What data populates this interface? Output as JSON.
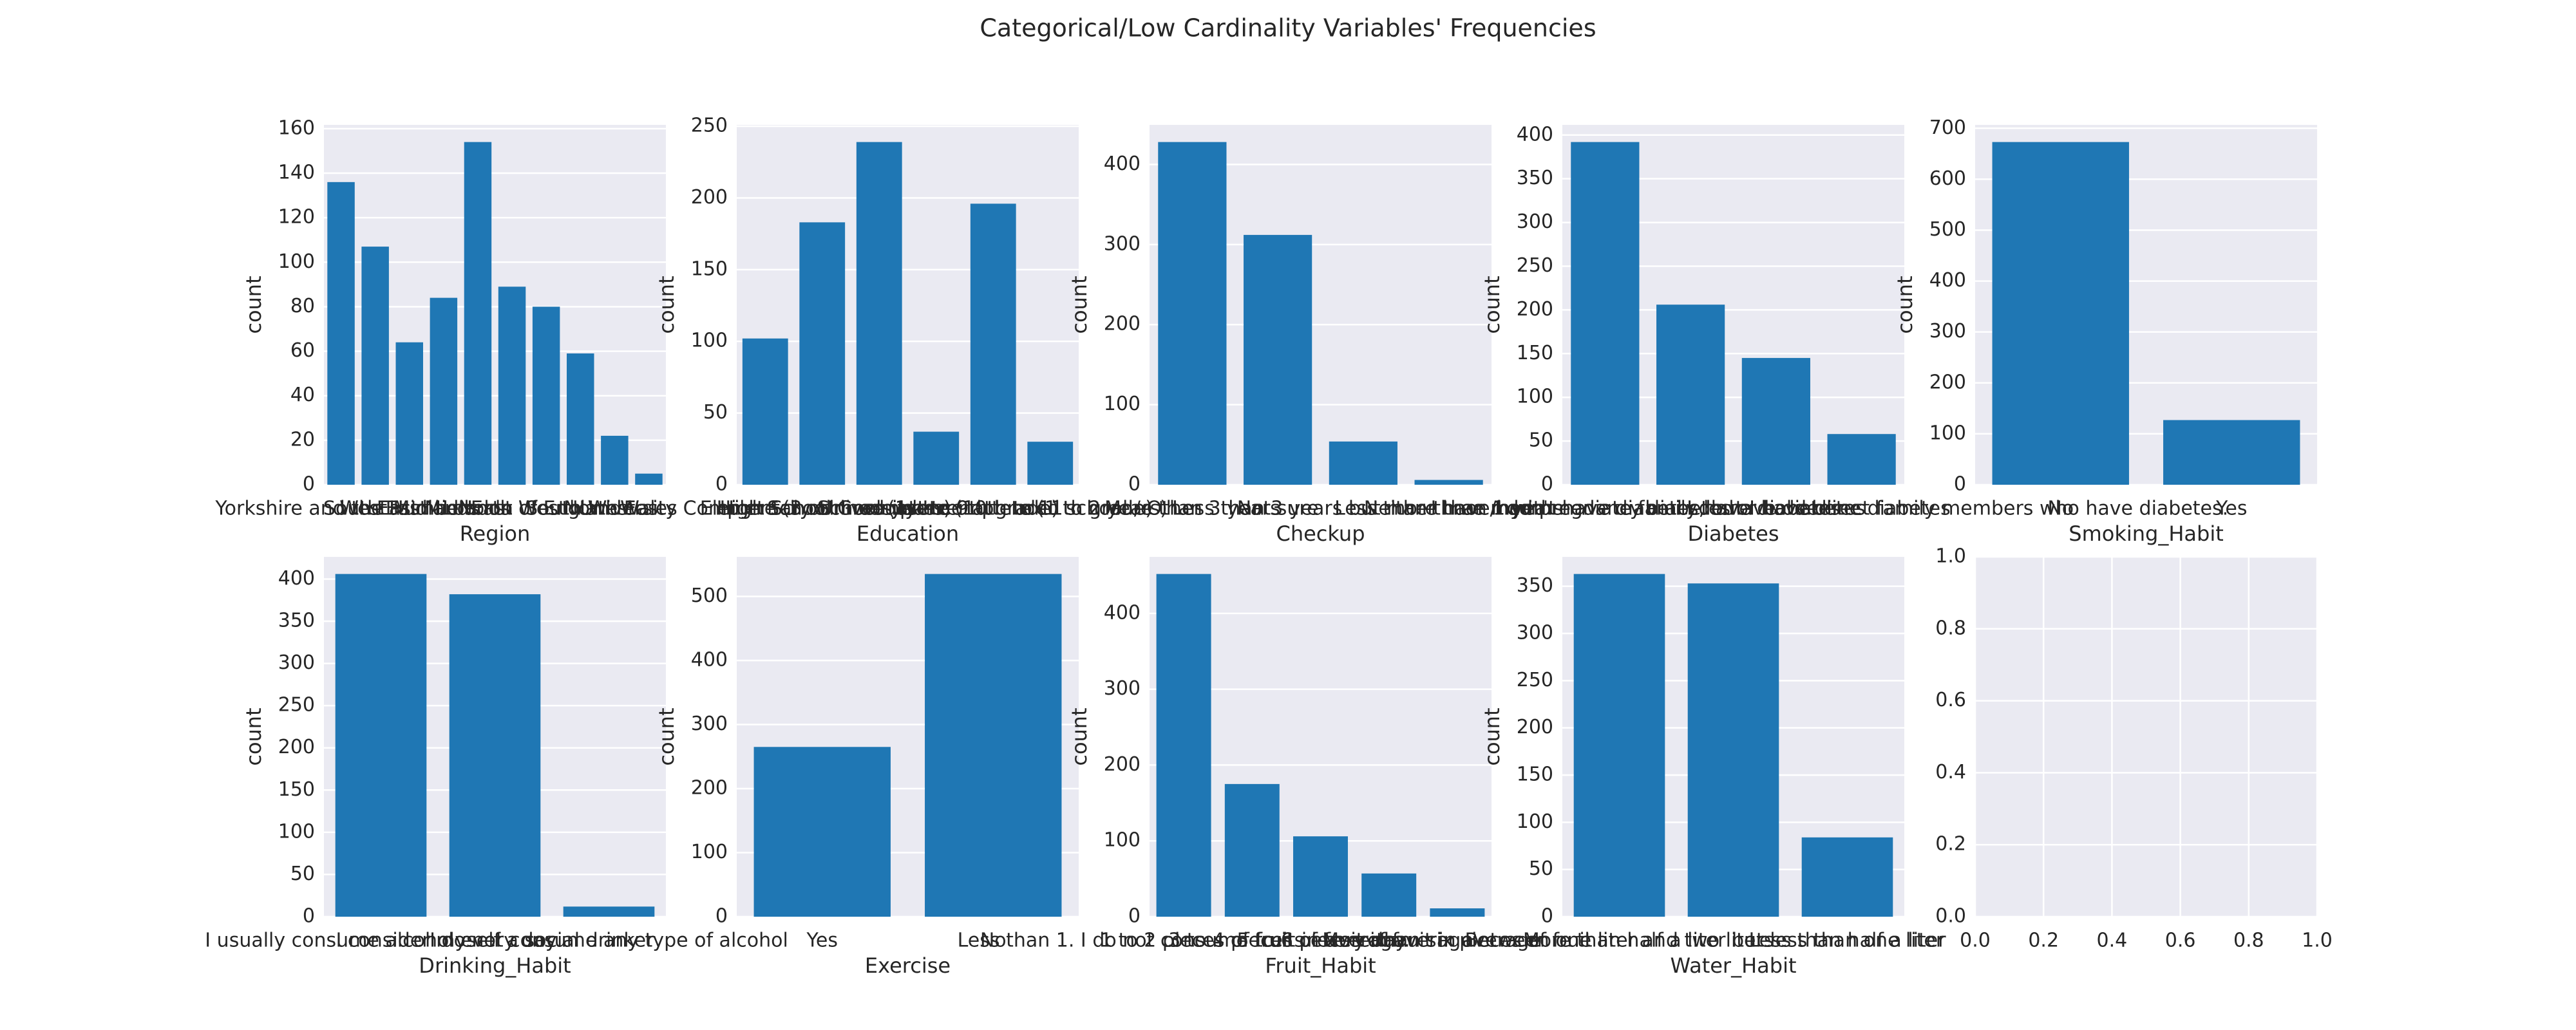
{
  "title": "Categorical/Low Cardinality Variables' Frequencies",
  "chart_data": [
    {
      "type": "bar",
      "xlabel": "Region",
      "ylabel": "count",
      "color": "#1f77b4",
      "grid": true,
      "categories": [
        "Yorkshire and the Humber",
        "South East",
        "West Midlands",
        "East Midlands",
        "London",
        "North West",
        "East of England",
        "South West",
        "North East",
        "Wales"
      ],
      "values": [
        136,
        107,
        64,
        84,
        154,
        89,
        80,
        59,
        22,
        5
      ],
      "ylim": [
        0,
        161.7
      ],
      "yticks": [
        0,
        20,
        40,
        60,
        80,
        100,
        120,
        140,
        160
      ]
    },
    {
      "type": "bar",
      "xlabel": "Education",
      "ylabel": "count",
      "color": "#1f77b4",
      "grid": true,
      "categories": [
        "University Complete (3 or more years)",
        "High School Graduate",
        "Elementary School (1st to 9th grade)",
        "High School Incomplete (10th to 11th grade)",
        "University Incomplete (1 to 2 years)",
        "I never attended school / Other"
      ],
      "values": [
        102,
        183,
        239,
        37,
        196,
        30
      ],
      "ylim": [
        0,
        250.95
      ],
      "yticks": [
        0,
        50,
        100,
        150,
        200,
        250
      ]
    },
    {
      "type": "bar",
      "xlabel": "Checkup",
      "ylabel": "count",
      "color": "#1f77b4",
      "grid": true,
      "categories": [
        "More than 3 years",
        "Not sure",
        "Less than 3 years but more than 1 year",
        "Less than three months"
      ],
      "values": [
        428,
        312,
        54,
        6
      ],
      "ylim": [
        0,
        449.4
      ],
      "yticks": [
        0,
        100,
        200,
        300,
        400
      ]
    },
    {
      "type": "bar",
      "xlabel": "Diabetes",
      "ylabel": "count",
      "color": "#1f77b4",
      "grid": true,
      "categories": [
        "Neither I nor my immediate family have diabetes.",
        "I have/had pregnancy diabetes or borderline diabetes",
        "I do have diabetes",
        "I don't have diabetes, but I have direct family members who have diabetes."
      ],
      "values": [
        392,
        206,
        145,
        58
      ],
      "ylim": [
        0,
        411.6
      ],
      "yticks": [
        0,
        50,
        100,
        150,
        200,
        250,
        300,
        350,
        400
      ]
    },
    {
      "type": "bar",
      "xlabel": "Smoking_Habit",
      "ylabel": "count",
      "color": "#1f77b4",
      "grid": true,
      "categories": [
        "No",
        "Yes"
      ],
      "values": [
        673,
        127
      ],
      "ylim": [
        0,
        706.65
      ],
      "yticks": [
        0,
        100,
        200,
        300,
        400,
        500,
        600,
        700
      ]
    },
    {
      "type": "bar",
      "xlabel": "Drinking_Habit",
      "ylabel": "count",
      "color": "#1f77b4",
      "grid": true,
      "categories": [
        "I usually consume alcohol every day",
        "I consider myself a social drinker",
        "I do not consume any type of alcohol"
      ],
      "values": [
        406,
        382,
        12
      ],
      "ylim": [
        0,
        426.3
      ],
      "yticks": [
        0,
        50,
        100,
        150,
        200,
        250,
        300,
        350,
        400
      ]
    },
    {
      "type": "bar",
      "xlabel": "Exercise",
      "ylabel": "count",
      "color": "#1f77b4",
      "grid": true,
      "categories": [
        "Yes",
        "No"
      ],
      "values": [
        265,
        535
      ],
      "ylim": [
        0,
        561.75
      ],
      "yticks": [
        0,
        100,
        200,
        300,
        400,
        500
      ]
    },
    {
      "type": "bar",
      "xlabel": "Fruit_Habit",
      "ylabel": "count",
      "color": "#1f77b4",
      "grid": true,
      "categories": [
        "Less than 1. I do not consume fruits every day.",
        "1 to 2 pieces of fruit in average",
        "3 to 4 pieces of fruit in average",
        "5 to 6 pieces of fruit in average",
        "More than six pieces of fruit"
      ],
      "values": [
        452,
        175,
        106,
        57,
        11
      ],
      "ylim": [
        0,
        474.6
      ],
      "yticks": [
        0,
        100,
        200,
        300,
        400
      ]
    },
    {
      "type": "bar",
      "xlabel": "Water_Habit",
      "ylabel": "count",
      "color": "#1f77b4",
      "grid": true,
      "categories": [
        "Between one liter and two liters",
        "More than half a liter but less than one liter",
        "Less than half a liter"
      ],
      "values": [
        363,
        353,
        84
      ],
      "ylim": [
        0,
        381.15
      ],
      "yticks": [
        0,
        50,
        100,
        150,
        200,
        250,
        300,
        350
      ]
    },
    {
      "type": "bar",
      "grid": true,
      "xlim": [
        0,
        1
      ],
      "xticks": [
        {
          "value": 0,
          "label": "0.0"
        },
        {
          "value": 0.2,
          "label": "0.2"
        },
        {
          "value": 0.4,
          "label": "0.4"
        },
        {
          "value": 0.6,
          "label": "0.6"
        },
        {
          "value": 0.8,
          "label": "0.8"
        },
        {
          "value": 1,
          "label": "1.0"
        }
      ],
      "ylim": [
        0,
        1
      ],
      "yticks": [
        {
          "value": 0,
          "label": "0.0"
        },
        {
          "value": 0.2,
          "label": "0.2"
        },
        {
          "value": 0.4,
          "label": "0.4"
        },
        {
          "value": 0.6,
          "label": "0.6"
        },
        {
          "value": 0.8,
          "label": "0.8"
        },
        {
          "value": 1,
          "label": "1.0"
        }
      ]
    }
  ]
}
